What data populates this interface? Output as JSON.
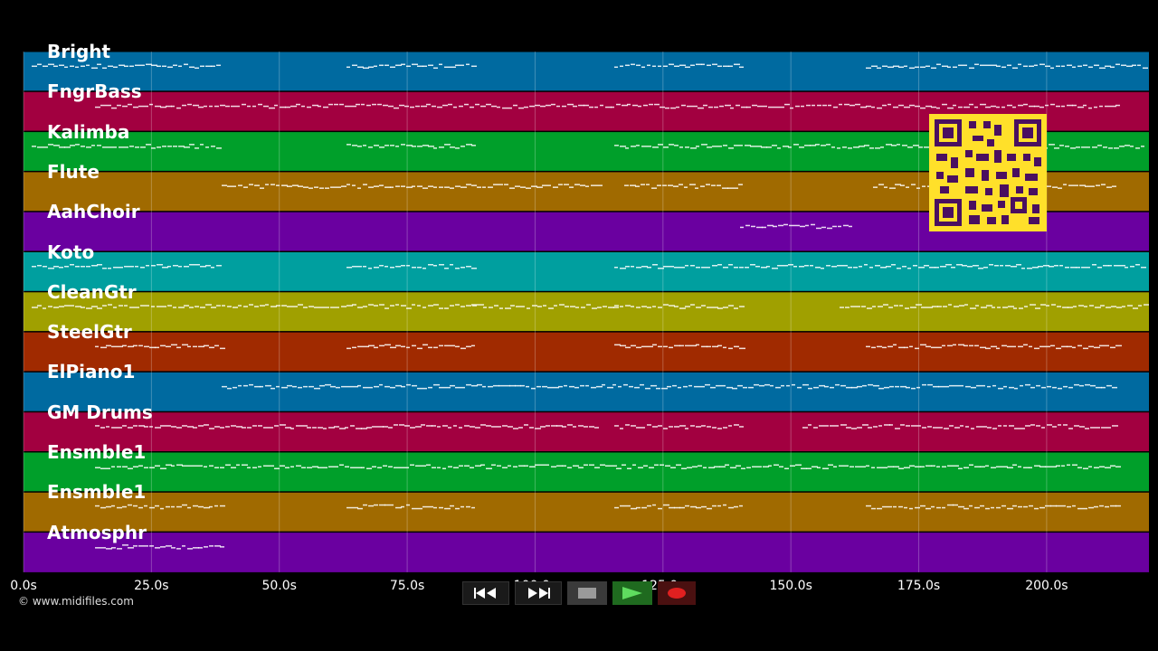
{
  "tracks": [
    {
      "name": "Bright",
      "color": "#006aa0"
    },
    {
      "name": "FngrBass",
      "color": "#a20040"
    },
    {
      "name": "Kalimba",
      "color": "#009f2a"
    },
    {
      "name": "Flute",
      "color": "#a06a00"
    },
    {
      "name": "AahChoir",
      "color": "#6a00a0"
    },
    {
      "name": "Koto",
      "color": "#009f9f"
    },
    {
      "name": "CleanGtr",
      "color": "#a0a000"
    },
    {
      "name": "SteelGtr",
      "color": "#a02a00"
    },
    {
      "name": "ElPiano1",
      "color": "#006aa0"
    },
    {
      "name": "GM Drums",
      "color": "#a20040"
    },
    {
      "name": "Ensmble1",
      "color": "#009f2a"
    },
    {
      "name": "Ensmble1",
      "color": "#a06a00"
    },
    {
      "name": "Atmosphr",
      "color": "#6a00a0"
    }
  ],
  "timeline": {
    "ticks": [
      "0.0s",
      "25.0s",
      "50.0s",
      "75.0s",
      "100.0s",
      "125.0s",
      "150.0s",
      "175.0s",
      "200.0s"
    ],
    "tick_values": [
      0,
      25,
      50,
      75,
      100,
      125,
      150,
      175,
      200
    ],
    "range": [
      0,
      220
    ]
  },
  "copyright": "© www.midifiles.com",
  "transport": {
    "rewind_icon": "rewind-icon",
    "forward_icon": "fast-forward-icon",
    "stop_icon": "stop-icon",
    "play_icon": "play-icon",
    "record_icon": "record-icon"
  },
  "qr_icon": "qr-code-icon"
}
